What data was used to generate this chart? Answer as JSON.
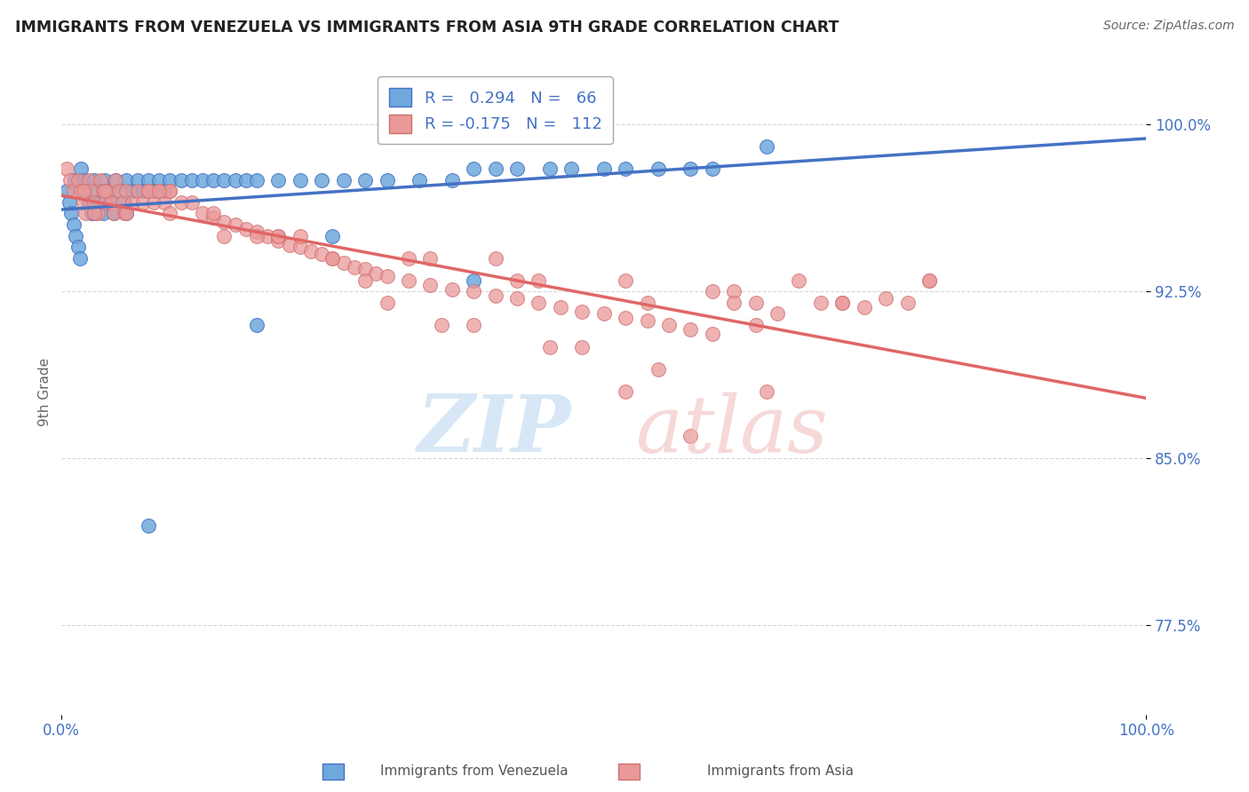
{
  "title": "IMMIGRANTS FROM VENEZUELA VS IMMIGRANTS FROM ASIA 9TH GRADE CORRELATION CHART",
  "source": "Source: ZipAtlas.com",
  "ylabel": "9th Grade",
  "xlim": [
    0.0,
    1.0
  ],
  "ylim": [
    0.735,
    1.025
  ],
  "yticks": [
    0.775,
    0.85,
    0.925,
    1.0
  ],
  "ytick_labels": [
    "77.5%",
    "85.0%",
    "92.5%",
    "100.0%"
  ],
  "xtick_labels": [
    "0.0%",
    "100.0%"
  ],
  "xticks": [
    0.0,
    1.0
  ],
  "R_venezuela": 0.294,
  "N_venezuela": 66,
  "R_asia": -0.175,
  "N_asia": 112,
  "color_venezuela": "#6fa8dc",
  "color_asia": "#ea9999",
  "trendline_color_venezuela": "#4472c4",
  "trendline_color_asia": "#e06666",
  "background_color": "#ffffff",
  "grid_color": "#cccccc",
  "venezuela_x": [
    0.005,
    0.007,
    0.009,
    0.011,
    0.013,
    0.015,
    0.017,
    0.012,
    0.018,
    0.02,
    0.022,
    0.025,
    0.028,
    0.03,
    0.032,
    0.035,
    0.038,
    0.04,
    0.042,
    0.045,
    0.048,
    0.05,
    0.055,
    0.058,
    0.06,
    0.065,
    0.07,
    0.075,
    0.08,
    0.085,
    0.09,
    0.095,
    0.1,
    0.11,
    0.12,
    0.13,
    0.14,
    0.15,
    0.16,
    0.17,
    0.18,
    0.2,
    0.22,
    0.24,
    0.26,
    0.28,
    0.3,
    0.33,
    0.36,
    0.38,
    0.4,
    0.42,
    0.45,
    0.47,
    0.5,
    0.52,
    0.55,
    0.58,
    0.6,
    0.65,
    0.38,
    0.25,
    0.18,
    0.08,
    0.06,
    0.03
  ],
  "venezuela_y": [
    0.97,
    0.965,
    0.96,
    0.955,
    0.95,
    0.945,
    0.94,
    0.975,
    0.98,
    0.975,
    0.97,
    0.965,
    0.96,
    0.975,
    0.97,
    0.965,
    0.96,
    0.975,
    0.97,
    0.965,
    0.96,
    0.975,
    0.97,
    0.965,
    0.975,
    0.97,
    0.975,
    0.97,
    0.975,
    0.97,
    0.975,
    0.97,
    0.975,
    0.975,
    0.975,
    0.975,
    0.975,
    0.975,
    0.975,
    0.975,
    0.975,
    0.975,
    0.975,
    0.975,
    0.975,
    0.975,
    0.975,
    0.975,
    0.975,
    0.98,
    0.98,
    0.98,
    0.98,
    0.98,
    0.98,
    0.98,
    0.98,
    0.98,
    0.98,
    0.99,
    0.93,
    0.95,
    0.91,
    0.82,
    0.96,
    0.96
  ],
  "asia_x": [
    0.005,
    0.008,
    0.011,
    0.015,
    0.018,
    0.02,
    0.022,
    0.025,
    0.028,
    0.03,
    0.033,
    0.036,
    0.038,
    0.04,
    0.043,
    0.046,
    0.048,
    0.05,
    0.053,
    0.056,
    0.058,
    0.06,
    0.065,
    0.07,
    0.075,
    0.08,
    0.085,
    0.09,
    0.095,
    0.1,
    0.11,
    0.12,
    0.13,
    0.14,
    0.15,
    0.16,
    0.17,
    0.18,
    0.19,
    0.2,
    0.21,
    0.22,
    0.23,
    0.24,
    0.25,
    0.26,
    0.27,
    0.28,
    0.29,
    0.3,
    0.32,
    0.34,
    0.36,
    0.38,
    0.4,
    0.42,
    0.44,
    0.46,
    0.48,
    0.5,
    0.52,
    0.54,
    0.56,
    0.58,
    0.6,
    0.62,
    0.64,
    0.66,
    0.68,
    0.7,
    0.72,
    0.74,
    0.76,
    0.78,
    0.8,
    0.35,
    0.45,
    0.55,
    0.65,
    0.25,
    0.15,
    0.08,
    0.04,
    0.02,
    0.03,
    0.06,
    0.1,
    0.2,
    0.32,
    0.42,
    0.52,
    0.62,
    0.72,
    0.8,
    0.14,
    0.22,
    0.34,
    0.44,
    0.54,
    0.64,
    0.4,
    0.6,
    0.52,
    0.3,
    0.2,
    0.1,
    0.58,
    0.48,
    0.38,
    0.28,
    0.18,
    0.09
  ],
  "asia_y": [
    0.98,
    0.975,
    0.97,
    0.975,
    0.97,
    0.965,
    0.96,
    0.975,
    0.97,
    0.965,
    0.96,
    0.975,
    0.97,
    0.965,
    0.97,
    0.965,
    0.96,
    0.975,
    0.97,
    0.965,
    0.96,
    0.97,
    0.965,
    0.97,
    0.965,
    0.97,
    0.965,
    0.97,
    0.965,
    0.97,
    0.965,
    0.965,
    0.96,
    0.958,
    0.956,
    0.955,
    0.953,
    0.952,
    0.95,
    0.948,
    0.946,
    0.945,
    0.943,
    0.942,
    0.94,
    0.938,
    0.936,
    0.935,
    0.933,
    0.932,
    0.93,
    0.928,
    0.926,
    0.925,
    0.923,
    0.922,
    0.92,
    0.918,
    0.916,
    0.915,
    0.913,
    0.912,
    0.91,
    0.908,
    0.906,
    0.925,
    0.92,
    0.915,
    0.93,
    0.92,
    0.92,
    0.918,
    0.922,
    0.92,
    0.93,
    0.91,
    0.9,
    0.89,
    0.88,
    0.94,
    0.95,
    0.97,
    0.97,
    0.97,
    0.96,
    0.96,
    0.96,
    0.95,
    0.94,
    0.93,
    0.93,
    0.92,
    0.92,
    0.93,
    0.96,
    0.95,
    0.94,
    0.93,
    0.92,
    0.91,
    0.94,
    0.925,
    0.88,
    0.92,
    0.95,
    0.97,
    0.86,
    0.9,
    0.91,
    0.93,
    0.95,
    0.97
  ]
}
